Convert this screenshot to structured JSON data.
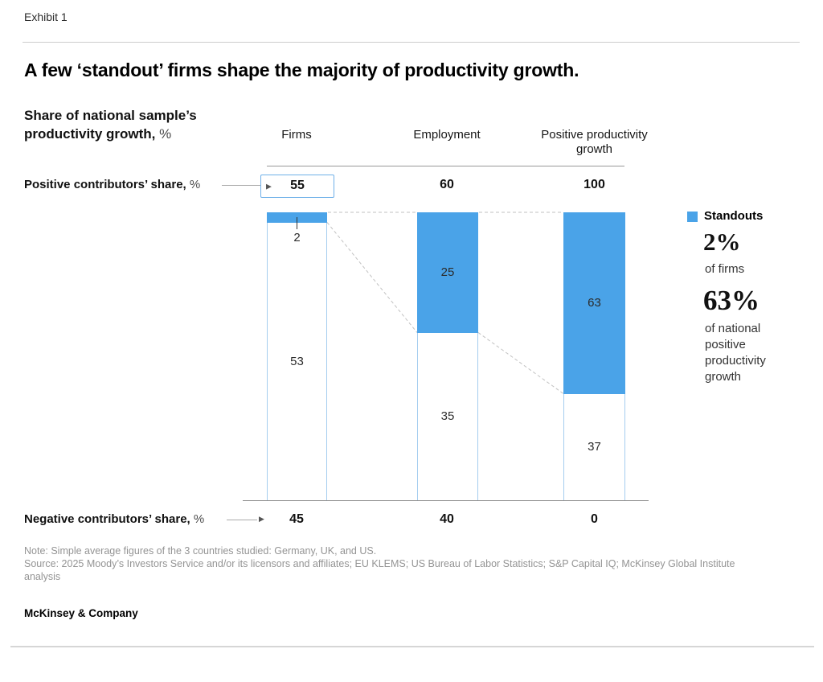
{
  "page": {
    "exhibit_label": "Exhibit 1",
    "brand": "McKinsey & Company",
    "note": "Note: Simple average figures of the 3 countries studied: Germany, UK, and US.",
    "source": "Source: 2025 Moody’s Investors Service and/or its licensors and affiliates; EU KLEMS; US Bureau of Labor Statistics; S&P Capital IQ; McKinsey Global Institute analysis"
  },
  "chart_data": {
    "type": "bar",
    "subtype": "stacked-columns-normalized-height",
    "title": "A few ‘standout’ firms shape the majority of productivity growth.",
    "axis_title": "Share of national sample’s productivity growth,",
    "axis_unit": "%",
    "categories": [
      "Firms",
      "Employment",
      "Positive productivity growth"
    ],
    "series": [
      {
        "name": "Standouts",
        "color": "#4AA3E8",
        "values": [
          2,
          25,
          63
        ]
      },
      {
        "name": "",
        "color": "#FFFFFF",
        "values": [
          53,
          35,
          37
        ]
      }
    ],
    "rows": {
      "positive_label": "Positive contributors’ share,",
      "positive_unit": "%",
      "positive_values": [
        "55",
        "60",
        "100"
      ],
      "positive_highlight_index": 0,
      "negative_label": "Negative contributors’ share,",
      "negative_unit": "%",
      "negative_values": [
        "45",
        "40",
        "0"
      ]
    },
    "legend": {
      "label": "Standouts",
      "color": "#4AA3E8"
    },
    "callouts": [
      {
        "stat": "2%",
        "desc": "of firms"
      },
      {
        "stat": "63%",
        "desc": "of national positive productivity growth"
      }
    ],
    "layout_hints": {
      "grid": false,
      "legend_position": "right",
      "column_tops_aligned": true
    }
  }
}
